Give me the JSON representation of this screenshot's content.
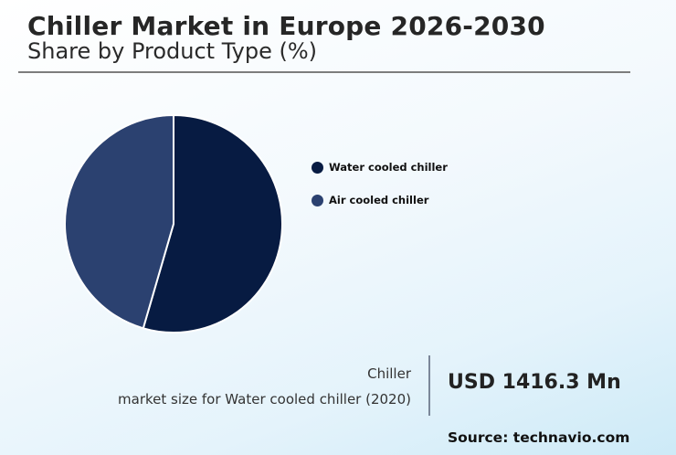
{
  "header": {
    "title": "Chiller Market in Europe 2026-2030",
    "subtitle": "Share by Product Type (%)"
  },
  "legend": {
    "items": [
      {
        "label": "Water cooled chiller",
        "color": "#071b42"
      },
      {
        "label": "Air cooled chiller",
        "color": "#2b4170"
      }
    ]
  },
  "stat": {
    "label_line1": "Chiller",
    "label_line2": "market size for Water cooled chiller (2020)",
    "value": "USD 1416.3 Mn"
  },
  "footer": {
    "source": "Source: technavio.com"
  },
  "chart_data": {
    "type": "pie",
    "title": "Chiller Market in Europe 2026-2030",
    "subtitle": "Share by Product Type (%)",
    "categories": [
      "Water cooled chiller",
      "Air cooled chiller"
    ],
    "values": [
      54.5,
      45.5
    ],
    "colors": [
      "#071b42",
      "#2b4170"
    ],
    "start_angle_deg": 0,
    "direction": "clockwise",
    "legend_position": "right",
    "annotation": "Chiller market size for Water cooled chiller (2020): USD 1416.3 Mn",
    "source": "technavio.com"
  }
}
